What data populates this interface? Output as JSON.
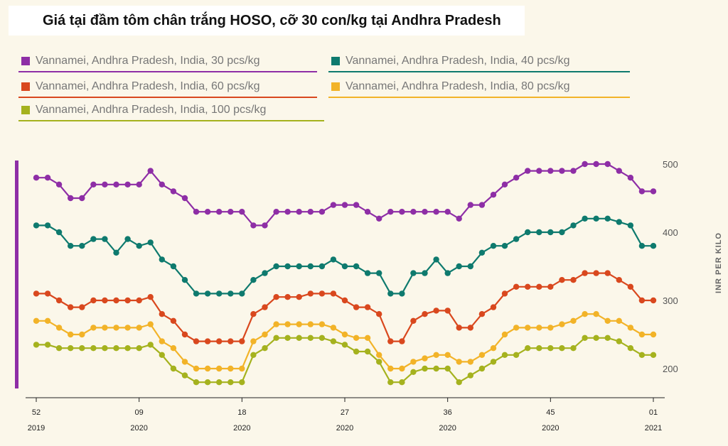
{
  "chart_data": {
    "type": "line",
    "title": "Giá tại đầm tôm chân trắng HOSO, cỡ 30 con/kg tại Andhra Pradesh",
    "ylabel": "INR PER KILO",
    "xlabel": "",
    "ylim": [
      170,
      510
    ],
    "y_ticks": [
      200,
      300,
      400,
      500
    ],
    "x_ticks": [
      {
        "week": "52",
        "year": "2019",
        "index": 0
      },
      {
        "week": "09",
        "year": "2020",
        "index": 9
      },
      {
        "week": "18",
        "year": "2020",
        "index": 18
      },
      {
        "week": "27",
        "year": "2020",
        "index": 27
      },
      {
        "week": "36",
        "year": "2020",
        "index": 36
      },
      {
        "week": "45",
        "year": "2020",
        "index": 45
      },
      {
        "week": "01",
        "year": "2021",
        "index": 54
      }
    ],
    "legend_position": "top",
    "series": [
      {
        "name": "Vannamei, Andhra Pradesh, India, 30 pcs/kg",
        "color": "#8e2ea6",
        "values": [
          480,
          480,
          470,
          450,
          450,
          470,
          470,
          470,
          470,
          470,
          490,
          470,
          460,
          450,
          430,
          430,
          430,
          430,
          430,
          410,
          410,
          430,
          430,
          430,
          430,
          430,
          440,
          440,
          440,
          430,
          420,
          430,
          430,
          430,
          430,
          430,
          430,
          420,
          440,
          440,
          455,
          470,
          480,
          490,
          490,
          490,
          490,
          490,
          500,
          500,
          500,
          490,
          480,
          460,
          460
        ]
      },
      {
        "name": "Vannamei, Andhra Pradesh, India, 40 pcs/kg",
        "color": "#0e7a6e",
        "values": [
          410,
          410,
          400,
          380,
          380,
          390,
          390,
          370,
          390,
          380,
          385,
          360,
          350,
          330,
          310,
          310,
          310,
          310,
          310,
          330,
          340,
          350,
          350,
          350,
          350,
          350,
          360,
          350,
          350,
          340,
          340,
          310,
          310,
          340,
          340,
          360,
          340,
          350,
          350,
          370,
          380,
          380,
          390,
          400,
          400,
          400,
          400,
          410,
          420,
          420,
          420,
          415,
          410,
          380,
          380
        ]
      },
      {
        "name": "Vannamei, Andhra Pradesh, India, 60 pcs/kg",
        "color": "#d9481e",
        "values": [
          310,
          310,
          300,
          290,
          290,
          300,
          300,
          300,
          300,
          300,
          305,
          280,
          270,
          250,
          240,
          240,
          240,
          240,
          240,
          280,
          290,
          305,
          305,
          305,
          310,
          310,
          310,
          300,
          290,
          290,
          280,
          240,
          240,
          270,
          280,
          285,
          285,
          260,
          260,
          280,
          290,
          310,
          320,
          320,
          320,
          320,
          330,
          330,
          340,
          340,
          340,
          330,
          320,
          300,
          300
        ]
      },
      {
        "name": "Vannamei, Andhra Pradesh, India, 80 pcs/kg",
        "color": "#f2b328",
        "values": [
          270,
          270,
          260,
          250,
          250,
          260,
          260,
          260,
          260,
          260,
          265,
          240,
          230,
          210,
          200,
          200,
          200,
          200,
          200,
          240,
          250,
          265,
          265,
          265,
          265,
          265,
          260,
          250,
          245,
          245,
          220,
          200,
          200,
          210,
          215,
          220,
          220,
          210,
          210,
          220,
          230,
          250,
          260,
          260,
          260,
          260,
          265,
          270,
          280,
          280,
          270,
          270,
          260,
          250,
          250
        ]
      },
      {
        "name": "Vannamei, Andhra Pradesh, India, 100 pcs/kg",
        "color": "#a5b21e",
        "values": [
          235,
          235,
          230,
          230,
          230,
          230,
          230,
          230,
          230,
          230,
          235,
          220,
          200,
          190,
          180,
          180,
          180,
          180,
          180,
          220,
          230,
          245,
          245,
          245,
          245,
          245,
          240,
          235,
          225,
          225,
          210,
          180,
          180,
          195,
          200,
          200,
          200,
          180,
          190,
          200,
          210,
          220,
          220,
          230,
          230,
          230,
          230,
          230,
          245,
          245,
          245,
          240,
          230,
          220,
          220
        ]
      }
    ]
  },
  "colors": {
    "background": "#fbf7ea",
    "accent_bar": "#8e2ea6"
  }
}
